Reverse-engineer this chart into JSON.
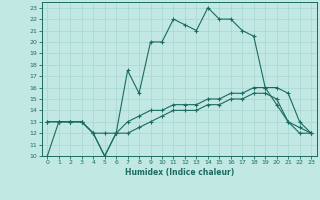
{
  "xlabel": "Humidex (Indice chaleur)",
  "bg_color": "#c2e8e4",
  "grid_color": "#a8d4d0",
  "line_color": "#1a6b60",
  "xlim": [
    -0.5,
    23.5
  ],
  "ylim": [
    10,
    23.5
  ],
  "yticks": [
    10,
    11,
    12,
    13,
    14,
    15,
    16,
    17,
    18,
    19,
    20,
    21,
    22,
    23
  ],
  "xticks": [
    0,
    1,
    2,
    3,
    4,
    5,
    6,
    7,
    8,
    9,
    10,
    11,
    12,
    13,
    14,
    15,
    16,
    17,
    18,
    19,
    20,
    21,
    22,
    23
  ],
  "line1_x": [
    0,
    1,
    2,
    3,
    4,
    5,
    6,
    7,
    8,
    9,
    10,
    11,
    12,
    13,
    14,
    15,
    16,
    17,
    18,
    19,
    20,
    21,
    22,
    23
  ],
  "line1_y": [
    10,
    13,
    13,
    13,
    12,
    10,
    12,
    17.5,
    15.5,
    20,
    20,
    22,
    21.5,
    21,
    23,
    22,
    22,
    21,
    20.5,
    16,
    14.5,
    13,
    12,
    12
  ],
  "line2_x": [
    0,
    1,
    2,
    3,
    4,
    5,
    6,
    7,
    8,
    9,
    10,
    11,
    12,
    13,
    14,
    15,
    16,
    17,
    18,
    19,
    20,
    21,
    22,
    23
  ],
  "line2_y": [
    13,
    13,
    13,
    13,
    12,
    12,
    12,
    13,
    13.5,
    14,
    14,
    14.5,
    14.5,
    14.5,
    15,
    15,
    15.5,
    15.5,
    16,
    16,
    16,
    15.5,
    13,
    12
  ],
  "line3_x": [
    0,
    1,
    2,
    3,
    4,
    5,
    6,
    7,
    8,
    9,
    10,
    11,
    12,
    13,
    14,
    15,
    16,
    17,
    18,
    19,
    20,
    21,
    22,
    23
  ],
  "line3_y": [
    13,
    13,
    13,
    13,
    12,
    10,
    12,
    12,
    12.5,
    13,
    13.5,
    14,
    14,
    14,
    14.5,
    14.5,
    15,
    15,
    15.5,
    15.5,
    15,
    13,
    12.5,
    12
  ]
}
